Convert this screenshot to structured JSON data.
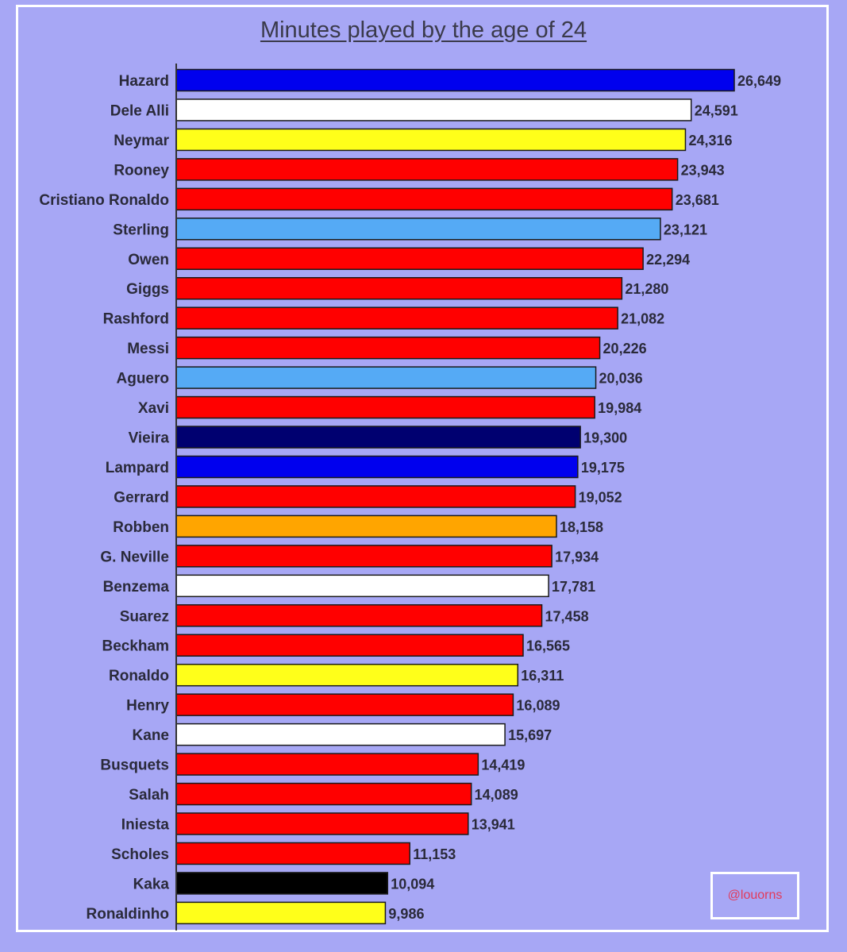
{
  "chart_data": {
    "type": "bar",
    "orientation": "horizontal",
    "title": "Minutes played by the age of 24",
    "xlabel": "",
    "ylabel": "",
    "xlim": [
      0,
      26649
    ],
    "grid": false,
    "categories": [
      "Hazard",
      "Dele Alli",
      "Neymar",
      "Rooney",
      "Cristiano Ronaldo",
      "Sterling",
      "Owen",
      "Giggs",
      "Rashford",
      "Messi",
      "Aguero",
      "Xavi",
      "Vieira",
      "Lampard",
      "Gerrard",
      "Robben",
      "G. Neville",
      "Benzema",
      "Suarez",
      "Beckham",
      "Ronaldo",
      "Henry",
      "Kane",
      "Busquets",
      "Salah",
      "Iniesta",
      "Scholes",
      "Kaka",
      "Ronaldinho"
    ],
    "values": [
      26649,
      24591,
      24316,
      23943,
      23681,
      23121,
      22294,
      21280,
      21082,
      20226,
      20036,
      19984,
      19300,
      19175,
      19052,
      18158,
      17934,
      17781,
      17458,
      16565,
      16311,
      16089,
      15697,
      14419,
      14089,
      13941,
      11153,
      10094,
      9986
    ],
    "value_labels": [
      "26,649",
      "24,591",
      "24,316",
      "23,943",
      "23,681",
      "23,121",
      "22,294",
      "21,280",
      "21,082",
      "20,226",
      "20,036",
      "19,984",
      "19,300",
      "19,175",
      "19,052",
      "18,158",
      "17,934",
      "17,781",
      "17,458",
      "16,565",
      "16,311",
      "16,089",
      "15,697",
      "14,419",
      "14,089",
      "13,941",
      "11,153",
      "10,094",
      "9,986"
    ],
    "colors": [
      "#0000ee",
      "#ffffff",
      "#ffff1a",
      "#ff0000",
      "#ff0000",
      "#55aaf5",
      "#ff0000",
      "#ff0000",
      "#ff0000",
      "#ff0000",
      "#55aaf5",
      "#ff0000",
      "#000070",
      "#0000ee",
      "#ff0000",
      "#ffa500",
      "#ff0000",
      "#ffffff",
      "#ff0000",
      "#ff0000",
      "#ffff1a",
      "#ff0000",
      "#ffffff",
      "#ff0000",
      "#ff0000",
      "#ff0000",
      "#ff0000",
      "#000000",
      "#ffff1a"
    ]
  },
  "watermark": "@louorns"
}
